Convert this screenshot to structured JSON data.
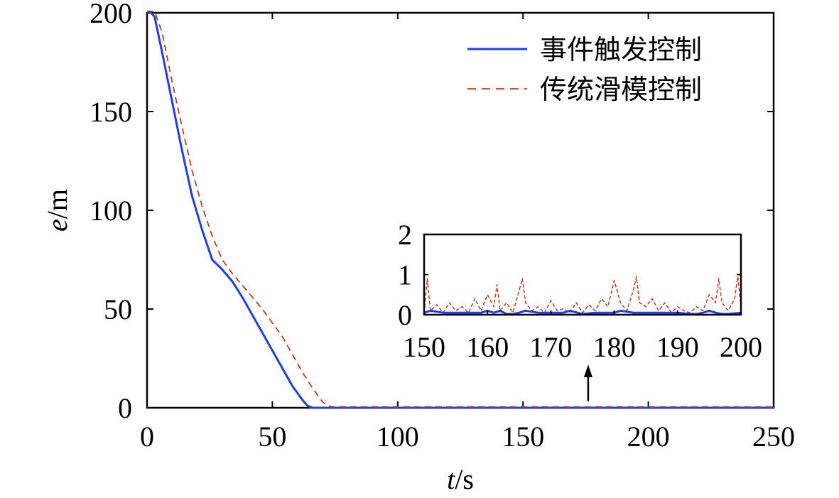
{
  "chart_data": [
    {
      "type": "line",
      "name": "main",
      "xlabel_var": "t",
      "xlabel_unit": "/s",
      "ylabel_var": "e",
      "ylabel_unit": "/m",
      "xlim": [
        0,
        250
      ],
      "ylim": [
        0,
        200
      ],
      "xticks": [
        0,
        50,
        100,
        150,
        200,
        250
      ],
      "yticks": [
        0,
        50,
        100,
        150,
        200
      ],
      "grid": false,
      "legend_position": "top-right",
      "series": [
        {
          "name": "事件触发控制",
          "style": "solid-blue",
          "x": [
            0,
            1,
            3,
            6,
            10,
            14,
            18,
            22,
            26,
            30,
            34,
            38,
            42,
            46,
            50,
            54,
            58,
            62,
            64,
            66,
            68,
            70,
            80,
            100,
            150,
            200,
            250
          ],
          "y": [
            200,
            202,
            198,
            180,
            155,
            130,
            107,
            90,
            75,
            70,
            64,
            56,
            47,
            38,
            29,
            20,
            11,
            4,
            1,
            0,
            0,
            0,
            0,
            0,
            0,
            0,
            0
          ]
        },
        {
          "name": "传统滑模控制",
          "style": "dashed-red",
          "x": [
            0,
            1,
            3,
            6,
            10,
            14,
            18,
            22,
            26,
            30,
            34,
            38,
            42,
            46,
            50,
            54,
            58,
            62,
            66,
            70,
            72,
            74,
            80,
            100,
            150,
            200,
            250
          ],
          "y": [
            208,
            206,
            202,
            190,
            165,
            142,
            120,
            102,
            87,
            75,
            68,
            62,
            56,
            50,
            43,
            36,
            27,
            18,
            10,
            3,
            1,
            0.5,
            0.5,
            0.5,
            0.5,
            0.5,
            0.5
          ]
        }
      ],
      "annotation": {
        "type": "arrow",
        "x": 176,
        "points_to": "inset"
      }
    },
    {
      "type": "line",
      "name": "inset",
      "xlim": [
        150,
        200
      ],
      "ylim": [
        0,
        2
      ],
      "xticks": [
        150,
        160,
        170,
        180,
        190,
        200
      ],
      "yticks": [
        0,
        1,
        2
      ],
      "series": [
        {
          "name": "事件触发控制",
          "style": "solid-blue",
          "x": [
            150,
            151,
            153,
            155,
            157,
            159,
            160,
            161,
            162,
            163,
            164,
            165,
            166,
            168,
            170,
            171,
            172,
            173,
            175,
            177,
            179,
            180,
            181,
            183,
            185,
            187,
            189,
            190,
            192,
            193,
            194,
            195,
            196,
            197,
            198,
            200
          ],
          "y": [
            0.05,
            0.1,
            0.05,
            0.05,
            0.05,
            0.05,
            0.1,
            0.05,
            0.1,
            0.0,
            -0.05,
            0.05,
            0.1,
            0.05,
            0.05,
            0.05,
            0.05,
            0.1,
            0.0,
            0.05,
            0.05,
            0.05,
            0.1,
            0.05,
            0.05,
            0.05,
            0.05,
            0.05,
            0.0,
            0.0,
            0.05,
            0.1,
            0.05,
            0.0,
            0.0,
            0.05
          ]
        },
        {
          "name": "传统滑模控制",
          "style": "dashed-red",
          "x": [
            150,
            150.5,
            151,
            152,
            153,
            154,
            155,
            156,
            157,
            158,
            159,
            160,
            161,
            161.5,
            162,
            163,
            164,
            165,
            165.5,
            166,
            167,
            168,
            169,
            170,
            171,
            172,
            173,
            174,
            175,
            176,
            177,
            178,
            179,
            180,
            181,
            182,
            183,
            183.5,
            184,
            185,
            186,
            187,
            188,
            189,
            190,
            191,
            192,
            193,
            194,
            195,
            196,
            196.5,
            197,
            198,
            199,
            199.5,
            200
          ],
          "y": [
            0.05,
            0.9,
            0.1,
            0.25,
            0.05,
            0.3,
            0.1,
            0.2,
            0.05,
            0.4,
            0.1,
            0.5,
            0.2,
            0.75,
            0.1,
            0.3,
            0.05,
            0.6,
            0.9,
            0.3,
            0.1,
            0.2,
            0.05,
            0.35,
            0.1,
            0.15,
            0.05,
            0.3,
            0.05,
            0.25,
            0.1,
            0.4,
            0.2,
            0.85,
            0.3,
            0.1,
            0.6,
            0.95,
            0.3,
            0.2,
            0.4,
            0.1,
            0.3,
            0.05,
            0.2,
            0.1,
            0.05,
            0.2,
            0.1,
            0.5,
            0.3,
            0.9,
            0.3,
            0.1,
            0.4,
            0.95,
            0.2
          ]
        }
      ]
    }
  ]
}
